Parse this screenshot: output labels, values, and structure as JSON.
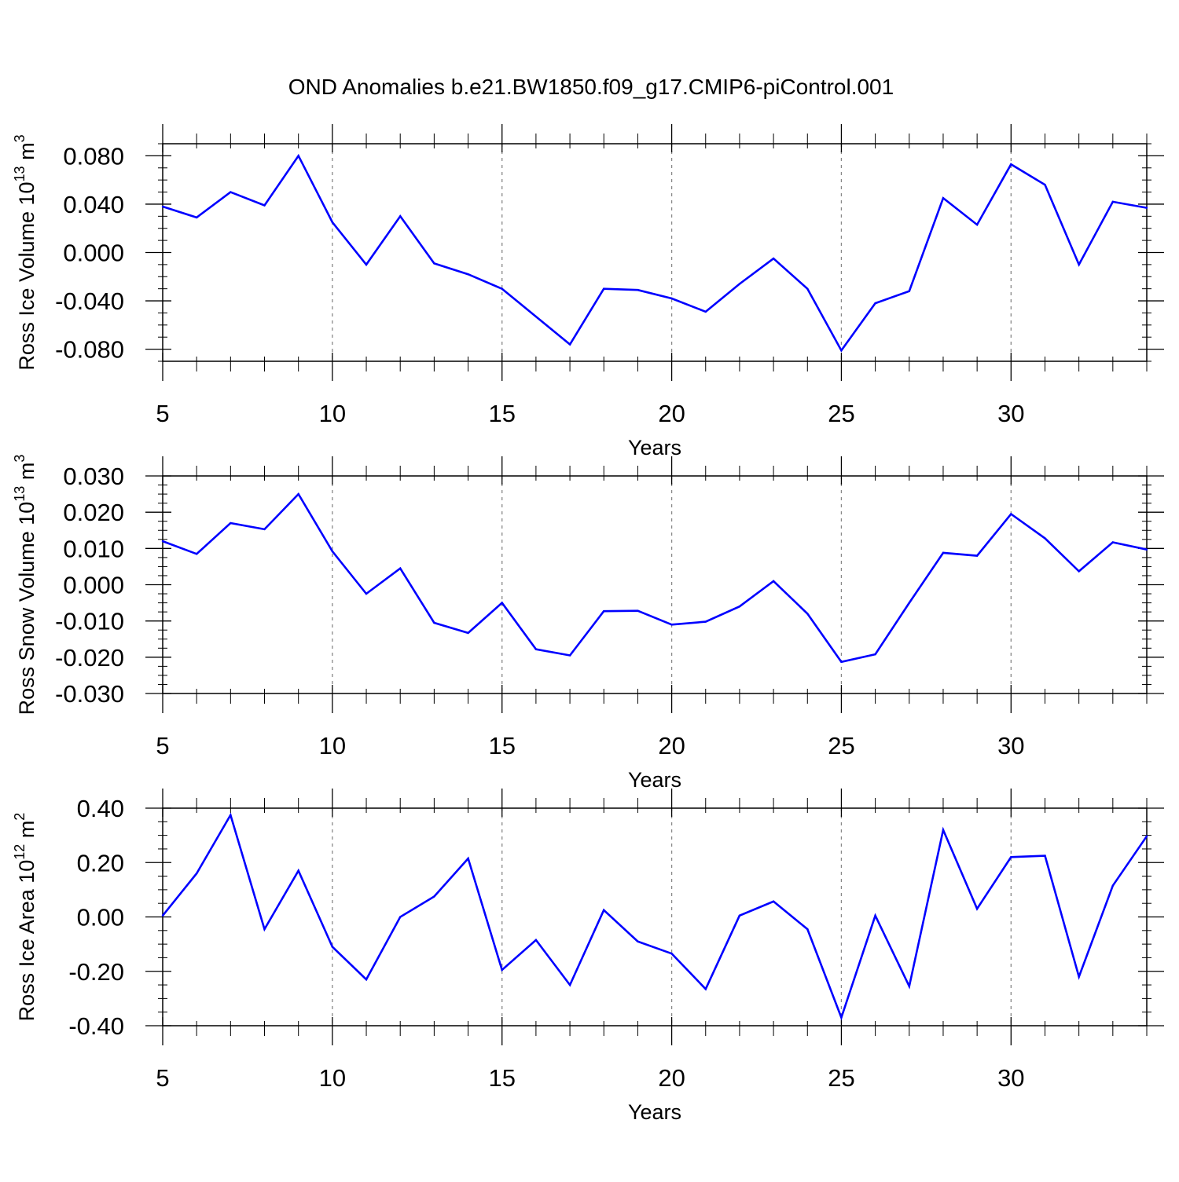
{
  "figure": {
    "title": "OND Anomalies b.e21.BW1850.f09_g17.CMIP6-piControl.001"
  },
  "colors": {
    "line": "#0000ff",
    "axis": "#000000",
    "grid": "#888888"
  },
  "chart_data": [
    {
      "type": "line",
      "ylabel_main": "Ross Ice Volume 10",
      "ylabel_exp": "13",
      "ylabel_unit": " m",
      "ylabel_unit_exp": "3",
      "xlabel": "Years",
      "xlim": [
        5,
        34
      ],
      "ylim": [
        -0.09,
        0.09
      ],
      "yticks": [
        -0.08,
        -0.04,
        0.0,
        0.04,
        0.08
      ],
      "ytick_labels": [
        "-0.080",
        "-0.040",
        "0.000",
        "0.040",
        "0.080"
      ],
      "y_minor_step": 0.01,
      "xticks": [
        5,
        10,
        15,
        20,
        25,
        30
      ],
      "xtick_labels": [
        "5",
        "10",
        "15",
        "20",
        "25",
        "30"
      ],
      "grid_x": [
        10,
        15,
        20,
        25,
        30
      ],
      "series": [
        {
          "name": "Ross Ice Volume",
          "x": [
            5,
            6,
            7,
            8,
            9,
            10,
            11,
            12,
            13,
            14,
            15,
            16,
            17,
            18,
            19,
            20,
            21,
            22,
            23,
            24,
            25,
            26,
            27,
            28,
            29,
            30,
            31,
            32,
            33,
            34
          ],
          "values": [
            0.038,
            0.029,
            0.05,
            0.039,
            0.08,
            0.025,
            -0.01,
            0.03,
            -0.009,
            -0.018,
            -0.03,
            -0.053,
            -0.076,
            -0.03,
            -0.031,
            -0.038,
            -0.049,
            -0.026,
            -0.005,
            -0.03,
            -0.081,
            -0.042,
            -0.032,
            0.045,
            0.023,
            0.073,
            0.056,
            -0.01,
            0.042,
            0.037
          ]
        }
      ]
    },
    {
      "type": "line",
      "ylabel_main": "Ross Snow Volume 10",
      "ylabel_exp": "13",
      "ylabel_unit": " m",
      "ylabel_unit_exp": "3",
      "xlabel": "Years",
      "xlim": [
        5,
        34
      ],
      "ylim": [
        -0.03,
        0.03
      ],
      "yticks": [
        -0.03,
        -0.02,
        -0.01,
        0.0,
        0.01,
        0.02,
        0.03
      ],
      "ytick_labels": [
        "-0.030",
        "-0.020",
        "-0.010",
        "0.000",
        "0.010",
        "0.020",
        "0.030"
      ],
      "y_minor_step": 0.0025,
      "xticks": [
        5,
        10,
        15,
        20,
        25,
        30
      ],
      "xtick_labels": [
        "5",
        "10",
        "15",
        "20",
        "25",
        "30"
      ],
      "grid_x": [
        10,
        15,
        20,
        25,
        30
      ],
      "series": [
        {
          "name": "Ross Snow Volume",
          "x": [
            5,
            6,
            7,
            8,
            9,
            10,
            11,
            12,
            13,
            14,
            15,
            16,
            17,
            18,
            19,
            20,
            21,
            22,
            23,
            24,
            25,
            26,
            27,
            28,
            29,
            30,
            31,
            32,
            33,
            34
          ],
          "values": [
            0.012,
            0.0085,
            0.017,
            0.0153,
            0.025,
            0.0092,
            -0.0025,
            0.0045,
            -0.0105,
            -0.0133,
            -0.005,
            -0.0178,
            -0.0195,
            -0.0073,
            -0.0072,
            -0.011,
            -0.0102,
            -0.006,
            0.001,
            -0.008,
            -0.0213,
            -0.0192,
            -0.005,
            0.0088,
            0.008,
            0.0195,
            0.0128,
            0.0037,
            0.0117,
            0.0097
          ]
        }
      ]
    },
    {
      "type": "line",
      "ylabel_main": "Ross Ice Area 10",
      "ylabel_exp": "12",
      "ylabel_unit": " m",
      "ylabel_unit_exp": "2",
      "xlabel": "Years",
      "xlim": [
        5,
        34
      ],
      "ylim": [
        -0.4,
        0.4
      ],
      "yticks": [
        -0.4,
        -0.2,
        0.0,
        0.2,
        0.4
      ],
      "ytick_labels": [
        "-0.40",
        "-0.20",
        "0.00",
        "0.20",
        "0.40"
      ],
      "y_minor_step": 0.05,
      "xticks": [
        5,
        10,
        15,
        20,
        25,
        30
      ],
      "xtick_labels": [
        "5",
        "10",
        "15",
        "20",
        "25",
        "30"
      ],
      "grid_x": [
        10,
        15,
        20,
        25,
        30
      ],
      "series": [
        {
          "name": "Ross Ice Area",
          "x": [
            5,
            6,
            7,
            8,
            9,
            10,
            11,
            12,
            13,
            14,
            15,
            16,
            17,
            18,
            19,
            20,
            21,
            22,
            23,
            24,
            25,
            26,
            27,
            28,
            29,
            30,
            31,
            32,
            33,
            34
          ],
          "values": [
            0.005,
            0.16,
            0.375,
            -0.045,
            0.17,
            -0.11,
            -0.23,
            0.0,
            0.075,
            0.215,
            -0.195,
            -0.085,
            -0.25,
            0.025,
            -0.09,
            -0.135,
            -0.265,
            0.005,
            0.057,
            -0.045,
            -0.37,
            0.005,
            -0.255,
            0.32,
            0.03,
            0.22,
            0.225,
            -0.22,
            0.115,
            0.297
          ]
        }
      ]
    }
  ]
}
